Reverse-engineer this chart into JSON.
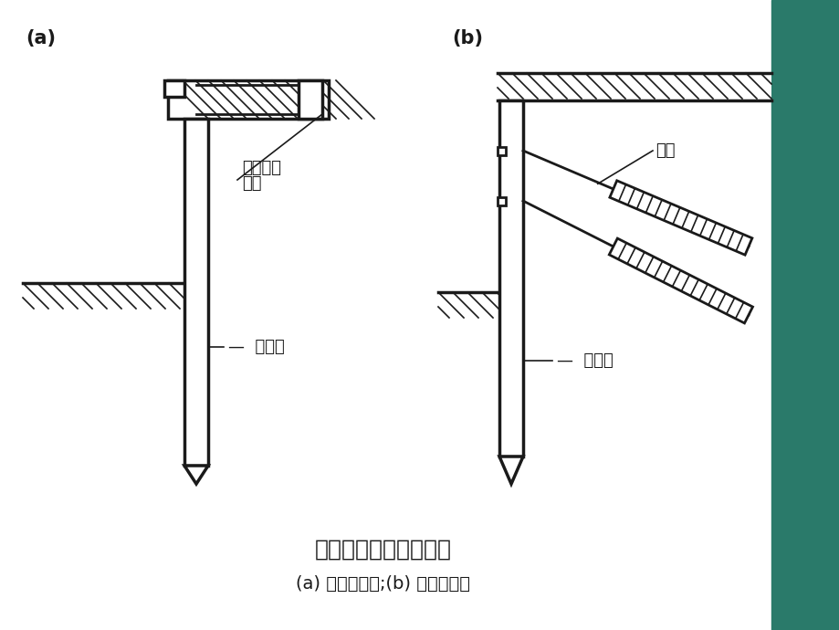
{
  "bg_color": "#ffffff",
  "line_color": "#1a1a1a",
  "title": "拉锚式支护结构示意图",
  "subtitle": "(a) 地面拉锚式;(b) 土层拉锚式",
  "label_a": "(a)",
  "label_b": "(b)",
  "label_pile_wall_a": "桩或墙",
  "label_pile_wall_b": "桩或墙",
  "label_anchor_a1": "地面拉锚",
  "label_anchor_a2": "锚桩",
  "label_anchor_b": "锚杆",
  "right_panel_color": "#2a7a6a",
  "title_fontsize": 18,
  "subtitle_fontsize": 14,
  "label_fontsize": 15,
  "annotation_fontsize": 13
}
